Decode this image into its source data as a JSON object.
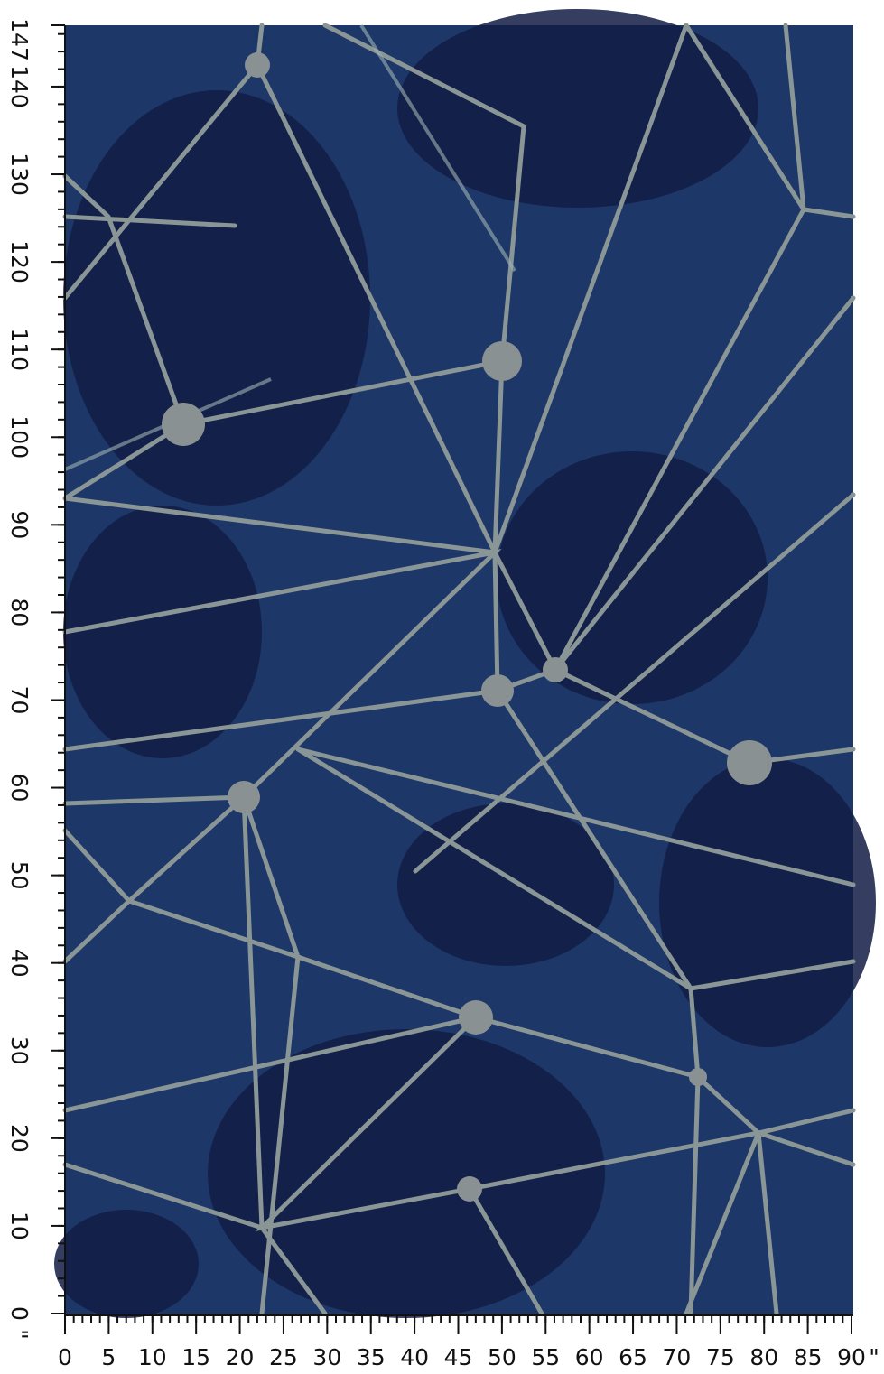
{
  "rulers": {
    "length": {
      "labels": [
        0,
        10,
        20,
        30,
        40,
        50,
        60,
        70,
        80,
        90,
        100,
        110,
        120,
        130,
        140,
        147
      ],
      "unit": "\""
    },
    "width": {
      "labels": [
        0,
        5,
        10,
        15,
        20,
        25,
        30,
        35,
        40,
        45,
        50,
        55,
        60,
        65,
        70,
        75,
        80,
        85,
        90
      ],
      "unit": "\""
    }
  }
}
